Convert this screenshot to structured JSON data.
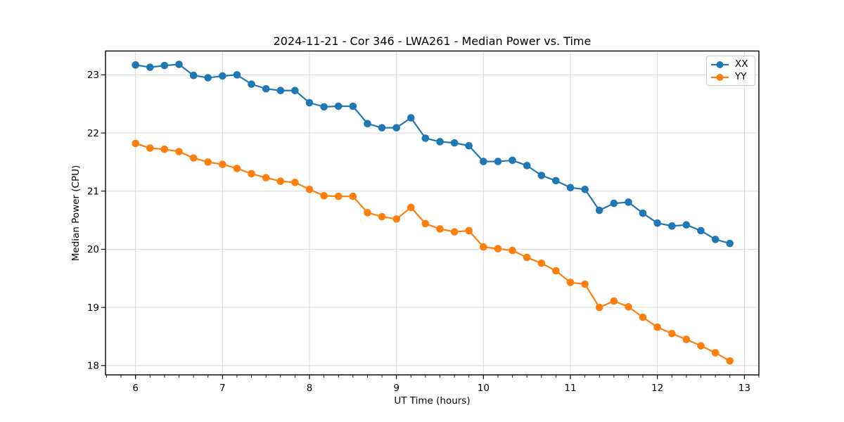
{
  "chart_data": {
    "type": "line",
    "title": "2024-11-21 - Cor 346 - LWA261 - Median Power vs. Time",
    "xlabel": "UT Time (hours)",
    "ylabel": "Median Power (CPU)",
    "xlim": [
      5.655,
      13.167
    ],
    "ylim": [
      17.84,
      23.41
    ],
    "x_ticks": [
      6,
      7,
      8,
      9,
      10,
      11,
      12,
      13
    ],
    "y_ticks": [
      18,
      19,
      20,
      21,
      22,
      23
    ],
    "x_minor_tick_step": 0.166667,
    "grid": "major",
    "grid_color": "#d9d9d9",
    "legend_position": "upper right",
    "x": [
      6.0,
      6.167,
      6.333,
      6.5,
      6.667,
      6.833,
      7.0,
      7.167,
      7.333,
      7.5,
      7.667,
      7.833,
      8.0,
      8.167,
      8.333,
      8.5,
      8.667,
      8.833,
      9.0,
      9.167,
      9.333,
      9.5,
      9.667,
      9.833,
      10.0,
      10.167,
      10.333,
      10.5,
      10.667,
      10.833,
      11.0,
      11.167,
      11.333,
      11.5,
      11.667,
      11.833,
      12.0,
      12.167,
      12.333,
      12.5,
      12.667,
      12.833
    ],
    "series": [
      {
        "name": "XX",
        "color": "#1f77b4",
        "marker": "circle",
        "values": [
          23.17,
          23.13,
          23.16,
          23.18,
          22.99,
          22.95,
          22.98,
          23.0,
          22.84,
          22.76,
          22.73,
          22.73,
          22.52,
          22.45,
          22.46,
          22.46,
          22.16,
          22.09,
          22.09,
          22.26,
          21.91,
          21.85,
          21.83,
          21.78,
          21.51,
          21.51,
          21.53,
          21.44,
          21.27,
          21.18,
          21.06,
          21.03,
          20.67,
          20.79,
          20.81,
          20.62,
          20.45,
          20.4,
          20.42,
          20.32,
          20.17,
          20.1
        ]
      },
      {
        "name": "YY",
        "color": "#ff7f0e",
        "marker": "circle",
        "values": [
          21.82,
          21.74,
          21.72,
          21.68,
          21.57,
          21.5,
          21.46,
          21.39,
          21.3,
          21.23,
          21.17,
          21.15,
          21.03,
          20.92,
          20.91,
          20.91,
          20.63,
          20.56,
          20.52,
          20.72,
          20.44,
          20.35,
          20.3,
          20.32,
          20.04,
          20.01,
          19.98,
          19.86,
          19.76,
          19.63,
          19.43,
          19.4,
          19.0,
          19.11,
          19.01,
          18.83,
          18.66,
          18.55,
          18.45,
          18.34,
          18.22,
          18.08
        ]
      }
    ]
  },
  "legend": {
    "items": [
      {
        "label": "XX",
        "color": "#1f77b4"
      },
      {
        "label": "YY",
        "color": "#ff7f0e"
      }
    ]
  }
}
